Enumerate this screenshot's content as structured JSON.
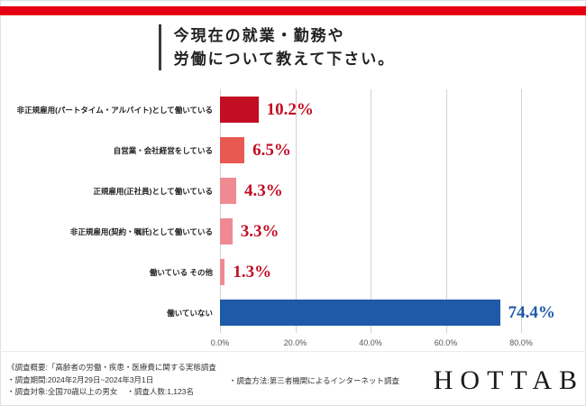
{
  "accent": {
    "top_bar_color": "#e60012"
  },
  "title": {
    "line1": "今現在の就業・勤務や",
    "line2": "労働について教えて下さい。"
  },
  "chart_data": {
    "type": "bar",
    "orientation": "horizontal",
    "title": "今現在の就業・勤務や労働について教えて下さい。",
    "categories": [
      "非正規雇用(パートタイム・アルバイト)として働いている",
      "自営業・会社経営をしている",
      "正規雇用(正社員)として働いている",
      "非正規雇用(契約・嘱託)として働いている",
      "働いている その他",
      "働いていない"
    ],
    "values": [
      10.2,
      6.5,
      4.3,
      3.3,
      1.3,
      74.4
    ],
    "value_labels": [
      "10.2%",
      "6.5%",
      "4.3%",
      "3.3%",
      "1.3%",
      "74.4%"
    ],
    "bar_colors": [
      "#c30d23",
      "#e85951",
      "#ef8a93",
      "#ef8a93",
      "#ef8a93",
      "#1e5aa8"
    ],
    "value_colors": [
      "#c30d23",
      "#c30d23",
      "#c30d23",
      "#c30d23",
      "#c30d23",
      "#1e5aa8"
    ],
    "xlim": [
      0,
      80
    ],
    "x_ticks": [
      "0.0%",
      "20.0%",
      "40.0%",
      "60.0%",
      "80.0%"
    ],
    "grid": true,
    "legend": false
  },
  "footer": {
    "overview": "《調査概要:「高齢者の労働・疾患・医療費に関する実態調査",
    "period": "・調査期間:2024年2月29日~2024年3月1日",
    "target": "・調査対象:全国70歳以上の男女",
    "count": "・調査人数:1,123名",
    "method": "・調査方法:第三者機関によるインターネット調査",
    "logo": "HOTTAB"
  }
}
